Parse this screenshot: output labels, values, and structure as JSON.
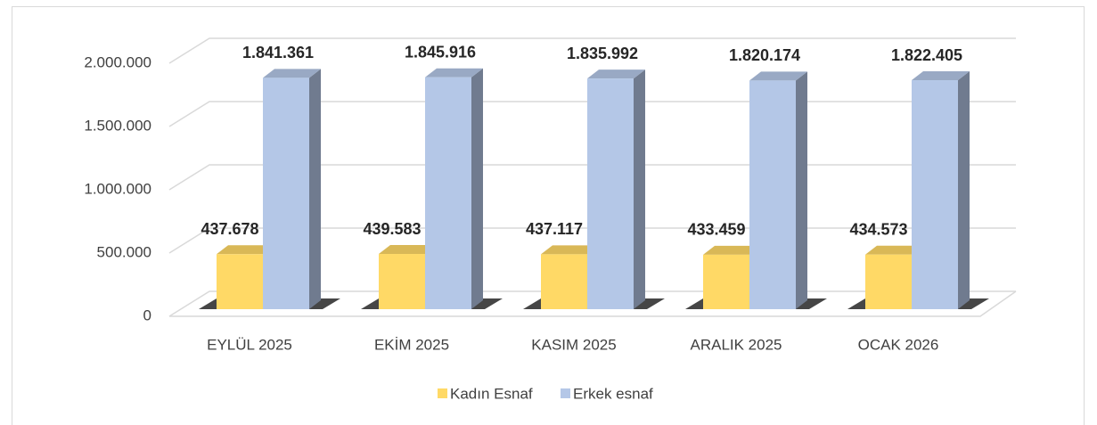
{
  "chart_data": {
    "type": "bar3d",
    "categories": [
      "EYLÜL 2025",
      "EKİM 2025",
      "KASIM 2025",
      "ARALIK 2025",
      "OCAK 2026"
    ],
    "series": [
      {
        "name": "Kadın Esnaf",
        "color": "#FFD966",
        "values": [
          437678,
          439583,
          437117,
          433459,
          434573
        ],
        "value_labels": [
          "437.678",
          "439.583",
          "437.117",
          "433.459",
          "434.573"
        ]
      },
      {
        "name": "Erkek esnaf",
        "color": "#B4C7E7",
        "values": [
          1841361,
          1845916,
          1835992,
          1820174,
          1822405
        ],
        "value_labels": [
          "1.841.361",
          "1.845.916",
          "1.835.992",
          "1.820.174",
          "1.822.405"
        ]
      }
    ],
    "ylim": [
      0,
      2000000
    ],
    "yticks": [
      0,
      {
        "value": 500000,
        "label": "500.000"
      },
      {
        "value": 1000000,
        "label": "1.000.000"
      },
      {
        "value": 1500000,
        "label": "1.500.000"
      },
      {
        "value": 2000000,
        "label": "2.000.000"
      }
    ],
    "grid": true,
    "legend": "bottom"
  }
}
